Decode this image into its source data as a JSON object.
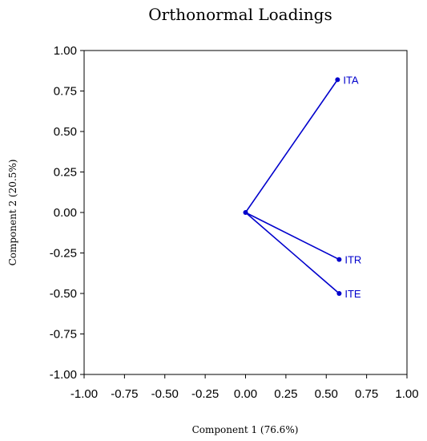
{
  "chart_data": {
    "type": "scatter",
    "title": "Orthonormal Loadings",
    "xlabel": "Component 1 (76.6%)",
    "ylabel": "Component 2 (20.5%)",
    "xlim": [
      -1.0,
      1.0
    ],
    "ylim": [
      -1.0,
      1.0
    ],
    "x_ticks": [
      "-1.00",
      "-0.75",
      "-0.50",
      "-0.25",
      "0.00",
      "0.25",
      "0.50",
      "0.75",
      "1.00"
    ],
    "y_ticks": [
      "1.00",
      "0.75",
      "0.50",
      "0.25",
      "0.00",
      "-0.25",
      "-0.50",
      "-0.75",
      "-1.00"
    ],
    "grid": false,
    "origin": [
      0.0,
      0.0
    ],
    "points": [
      {
        "label": "ITA",
        "x": 0.57,
        "y": 0.82
      },
      {
        "label": "ITR",
        "x": 0.58,
        "y": -0.29
      },
      {
        "label": "ITE",
        "x": 0.58,
        "y": -0.5
      }
    ],
    "color": "#0000cc"
  }
}
